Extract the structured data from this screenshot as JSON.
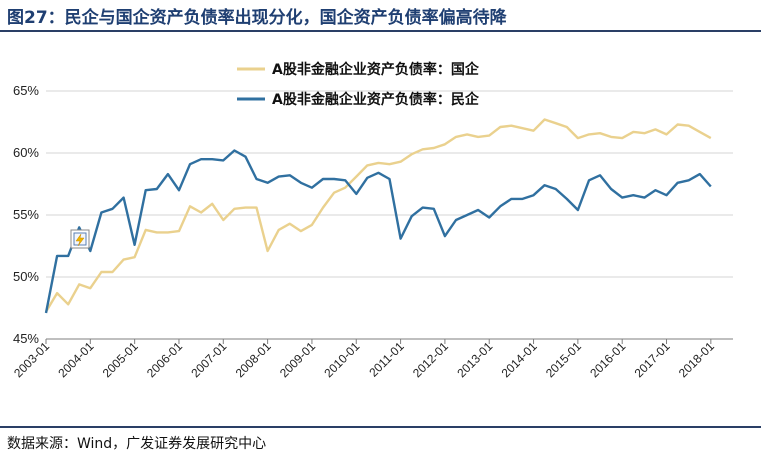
{
  "title": "图27：民企与国企资产负债率出现分化，国企资产负债率偏高待降",
  "source": "数据来源：Wind，广发证券发展研究中心",
  "chart_data": {
    "type": "line",
    "y_tick_labels": [
      "45%",
      "50%",
      "55%",
      "60%",
      "65%"
    ],
    "ylim": [
      45,
      65
    ],
    "x_tick_labels": [
      "2003-01",
      "2004-01",
      "2005-01",
      "2006-01",
      "2007-01",
      "2008-01",
      "2009-01",
      "2010-01",
      "2011-01",
      "2012-01",
      "2013-01",
      "2014-01",
      "2015-01",
      "2016-01",
      "2017-01",
      "2018-01"
    ],
    "x_start_year": 2003.0,
    "x_end_year": 2018.5,
    "x_step_years": 0.25,
    "series": [
      {
        "name": "A股非金融企业资产负债率：国企",
        "color": "#ead18e",
        "values": [
          47.2,
          48.7,
          47.8,
          49.4,
          49.1,
          50.4,
          50.4,
          51.4,
          51.6,
          53.8,
          53.6,
          53.6,
          53.7,
          55.7,
          55.2,
          55.9,
          54.6,
          55.5,
          55.6,
          55.6,
          52.1,
          53.8,
          54.3,
          53.7,
          54.2,
          55.6,
          56.8,
          57.2,
          58.1,
          59.0,
          59.2,
          59.1,
          59.3,
          59.9,
          60.3,
          60.4,
          60.7,
          61.3,
          61.5,
          61.3,
          61.4,
          62.1,
          62.2,
          62.0,
          61.8,
          62.7,
          62.4,
          62.1,
          61.2,
          61.5,
          61.6,
          61.3,
          61.2,
          61.7,
          61.6,
          61.9,
          61.5,
          62.3,
          62.2,
          61.7,
          61.2
        ]
      },
      {
        "name": "A股非金融企业资产负债率：民企",
        "color": "#3070a0",
        "values": [
          47.1,
          51.7,
          51.7,
          54.0,
          52.1,
          55.2,
          55.5,
          56.4,
          52.6,
          57.0,
          57.1,
          58.3,
          57.0,
          59.1,
          59.5,
          59.5,
          59.4,
          60.2,
          59.7,
          57.9,
          57.6,
          58.1,
          58.2,
          57.6,
          57.2,
          57.9,
          57.9,
          57.8,
          56.7,
          58.0,
          58.4,
          57.9,
          53.1,
          54.9,
          55.6,
          55.5,
          53.3,
          54.6,
          55.0,
          55.4,
          54.8,
          55.7,
          56.3,
          56.3,
          56.6,
          57.4,
          57.1,
          56.3,
          55.4,
          57.8,
          58.2,
          57.1,
          56.4,
          56.6,
          56.4,
          57.0,
          56.6,
          57.6,
          57.8,
          58.3,
          57.3
        ]
      }
    ],
    "grid": "horizontal",
    "legend_position": "top-center",
    "annotation_icon": "flash-icon"
  }
}
